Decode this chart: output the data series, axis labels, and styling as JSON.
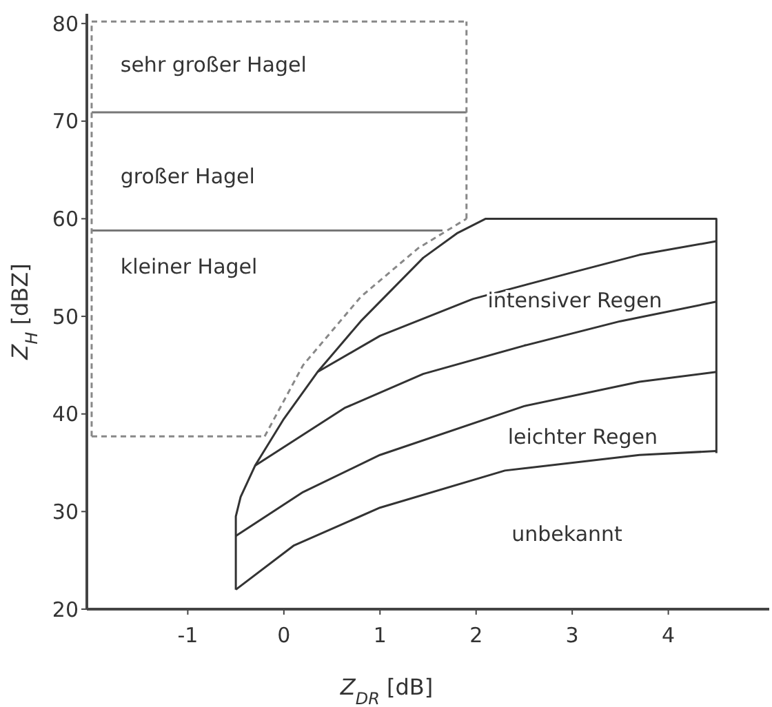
{
  "chart_data": {
    "type": "line",
    "xlabel": "Z$_{DR}$ [dB]",
    "ylabel": "Z$_{H}$ [dBZ]",
    "xlim": [
      -2.05,
      5.05
    ],
    "ylim": [
      20,
      81
    ],
    "xticks": [
      -1,
      0,
      1,
      2,
      3,
      4
    ],
    "yticks": [
      20,
      30,
      40,
      50,
      60,
      70,
      80
    ],
    "series": [
      {
        "color": "#333333",
        "x": [
          -0.5,
          -0.5,
          -0.45,
          -0.3,
          0,
          0.35,
          0.8,
          1.45,
          1.8,
          2.1,
          4.5,
          4.5
        ],
        "values": [
          22,
          29.5,
          31.5,
          34.7,
          39.5,
          44.3,
          49.5,
          56,
          58.5,
          60,
          60,
          36
        ]
      },
      {
        "color": "#333333",
        "x": [
          0.35,
          1,
          1.97,
          3,
          3.7,
          4.5
        ],
        "values": [
          44.3,
          48,
          51.8,
          54.5,
          56.3,
          57.7
        ]
      },
      {
        "color": "#333333",
        "x": [
          -0.3,
          0.63,
          1.45,
          2.5,
          3.5,
          4.5
        ],
        "values": [
          34.7,
          40.6,
          44.1,
          47,
          49.5,
          51.5
        ]
      },
      {
        "color": "#333333",
        "x": [
          -0.5,
          0.2,
          1,
          2.5,
          3.7,
          4.5
        ],
        "values": [
          27.5,
          32,
          35.8,
          40.8,
          43.3,
          44.3
        ]
      },
      {
        "color": "#333333",
        "x": [
          -0.5,
          0.1,
          1,
          2.3,
          3.7,
          4.5
        ],
        "values": [
          22,
          26.5,
          30.4,
          34.2,
          35.8,
          36.2
        ]
      },
      {
        "color": "#777777",
        "x": [
          -2,
          1.9
        ],
        "values": [
          70.9,
          70.9
        ]
      },
      {
        "color": "#777777",
        "x": [
          -2,
          1.65
        ],
        "values": [
          58.8,
          58.8
        ]
      },
      {
        "color": "#888888",
        "line_style": "dashed",
        "x": [
          -2,
          -2
        ],
        "values": [
          37.7,
          80.2
        ]
      },
      {
        "color": "#888888",
        "line_style": "dashed",
        "x": [
          -2,
          1.9
        ],
        "values": [
          80.2,
          80.2
        ]
      },
      {
        "color": "#888888",
        "line_style": "dashed",
        "x": [
          1.9,
          1.9
        ],
        "values": [
          60,
          80.2
        ]
      },
      {
        "color": "#888888",
        "line_style": "dashed",
        "x": [
          -0.2,
          0.2,
          0.8,
          1.4,
          1.9
        ],
        "values": [
          37.7,
          45,
          52,
          57,
          60
        ]
      },
      {
        "color": "#888888",
        "line_style": "dashed",
        "x": [
          -2,
          -0.2
        ],
        "values": [
          37.7,
          37.7
        ]
      }
    ],
    "annotations": [
      "sehr großer Hagel",
      "großer Hagel",
      "kleiner Hagel",
      "intensiver Regen",
      "leichter Regen",
      "unbekannt"
    ]
  }
}
